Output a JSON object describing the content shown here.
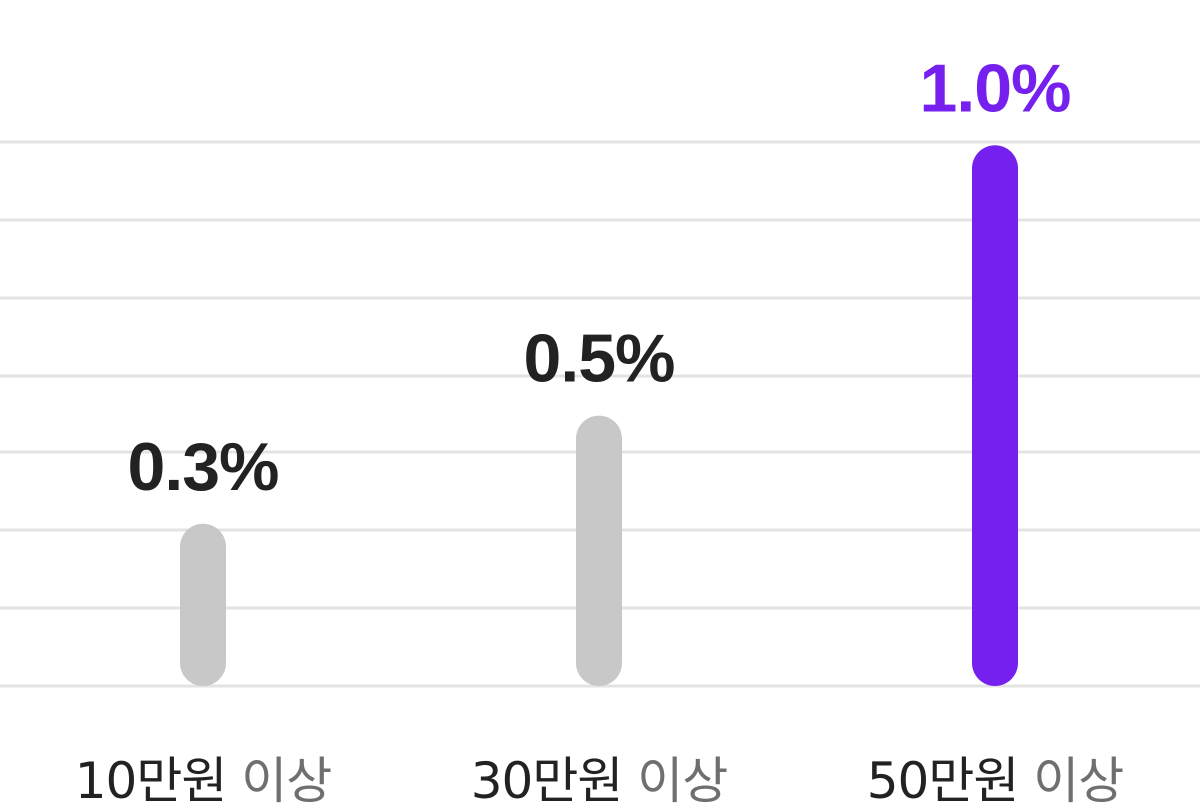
{
  "chart_data": {
    "type": "bar",
    "categories": [
      {
        "amount": "10만원",
        "suffix": "이상"
      },
      {
        "amount": "30만원",
        "suffix": "이상"
      },
      {
        "amount": "50만원",
        "suffix": "이상"
      }
    ],
    "values": [
      0.3,
      0.5,
      1.0
    ],
    "value_labels": [
      "0.3%",
      "0.5%",
      "1.0%"
    ],
    "unit": "%",
    "ylim": [
      0,
      1.08
    ],
    "grid": true,
    "highlight_index": 2,
    "colors": {
      "bar_default": "#c8c8c8",
      "bar_highlight": "#7520ee",
      "label_default": "#222222",
      "label_highlight": "#7520ee",
      "category_amount": "#222222",
      "category_suffix": "#6f6f6f",
      "gridline": "#e3e3e3"
    }
  }
}
